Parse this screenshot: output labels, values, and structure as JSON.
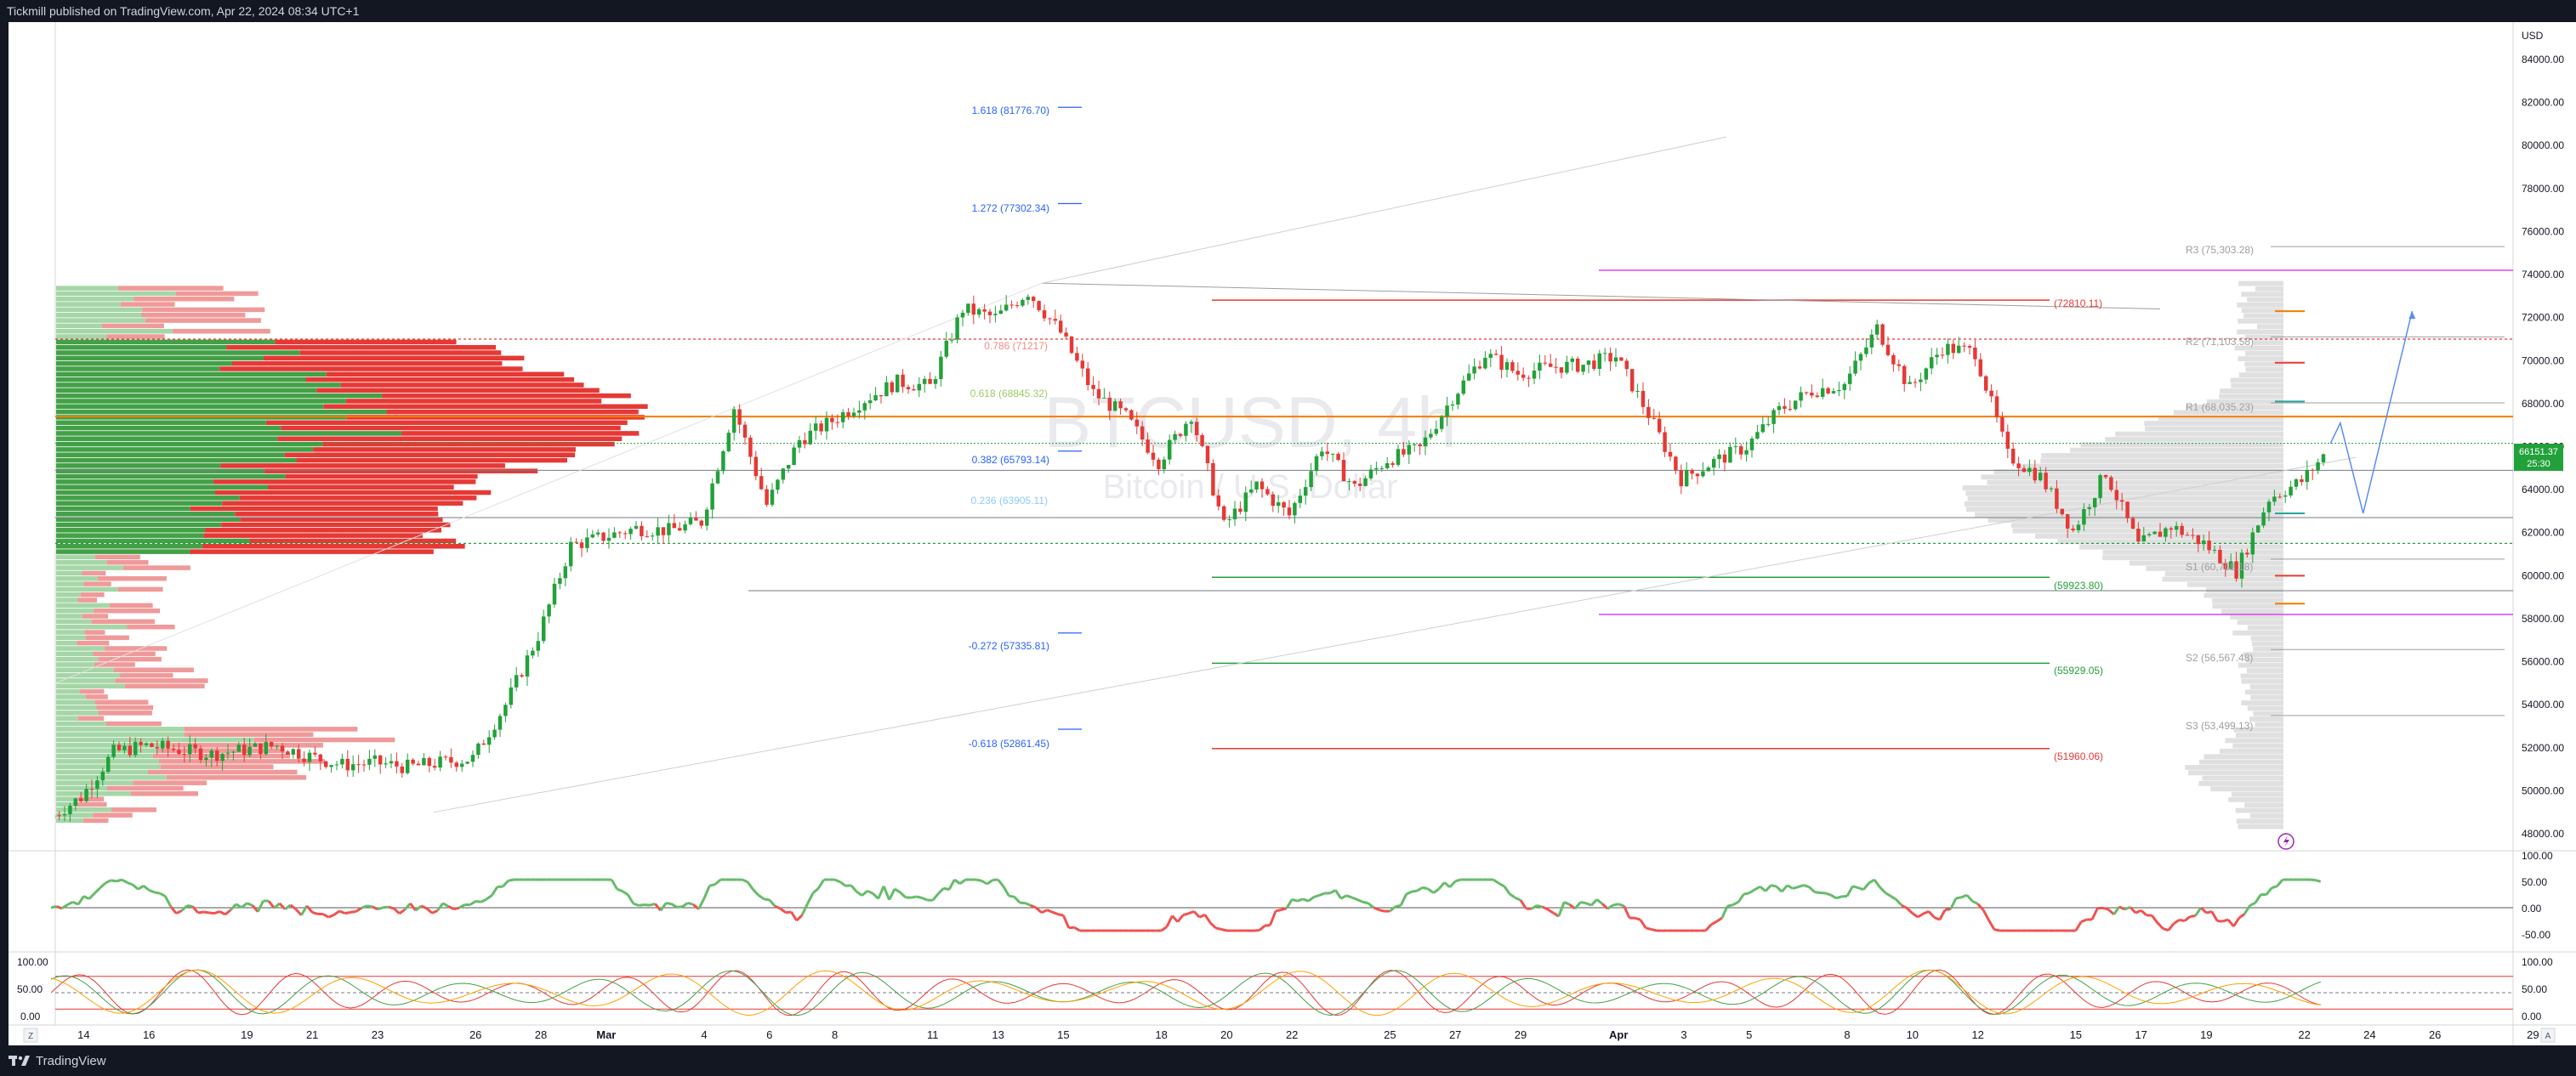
{
  "header": {
    "publisher_text": "Tickmill published on TradingView.com, Apr 22, 2024 08:34 UTC+1"
  },
  "footer": {
    "brand": "TradingView",
    "brand_icon": "tradingview-logo-icon"
  },
  "watermark": {
    "symbol": "BTCUSD, 4h",
    "name": "Bitcoin / U.S. Dollar"
  },
  "colors": {
    "bull": "#22a13a",
    "bear": "#e53935",
    "fib": "#2962ff",
    "orange": "#f57c00",
    "pink": "#e040fb",
    "grey": "#9e9e9e"
  },
  "axes": {
    "currency": "USD",
    "price_ticks": [
      "84000.00",
      "82000.00",
      "80000.00",
      "78000.00",
      "76000.00",
      "74000.00",
      "72000.00",
      "70000.00",
      "68000.00",
      "66000.00",
      "64000.00",
      "62000.00",
      "60000.00",
      "58000.00",
      "56000.00",
      "54000.00",
      "52000.00",
      "50000.00",
      "48000.00"
    ],
    "last_price": "66151.37",
    "countdown": "25:30",
    "osc1_ticks": [
      "100.00",
      "50.00",
      "0.00",
      "-50.00"
    ],
    "osc2_left_ticks": [
      "100.00",
      "50.00",
      "0.00"
    ],
    "osc2_right_ticks": [
      "100.00",
      "50.00",
      "0.00"
    ],
    "date_ticks": [
      "14",
      "16",
      "19",
      "21",
      "23",
      "26",
      "28",
      "Mar",
      "4",
      "6",
      "8",
      "11",
      "13",
      "15",
      "18",
      "20",
      "22",
      "25",
      "27",
      "29",
      "Apr",
      "3",
      "5",
      "8",
      "10",
      "12",
      "15",
      "17",
      "19",
      "22",
      "24",
      "26",
      "29"
    ],
    "corner_left": "Z",
    "corner_right": "A"
  },
  "fib_labels": [
    "1.618 (81776.70)",
    "1.272 (77302.34)",
    "0.618 (68845.32)",
    "0.382 (65793.14)",
    "0.236 (63905.11)",
    "-0.272 (57335.81)",
    "-0.618 (52861.45)"
  ],
  "fib_partial": [
    "0.786 (71217)"
  ],
  "levels": [
    "(72810.11)",
    "(59923.80)",
    "(55929.05)",
    "(51960.06)"
  ],
  "pivots": [
    "R3 (75,303.28)",
    "R2 (71,103.58)",
    "R1 (68,035.23)",
    "S1 (60,768.18)",
    "S2 (56,567.48)",
    "S3 (53,499.13)"
  ],
  "chart_data": {
    "type": "candlestick",
    "title": "BTCUSD, 4h",
    "subtitle": "Bitcoin / U.S. Dollar",
    "xlabel": "",
    "ylabel": "USD",
    "ylim": [
      48000,
      86000
    ],
    "x": [
      "Feb 13",
      "Feb 14",
      "Feb 15",
      "Feb 16",
      "Feb 17",
      "Feb 18",
      "Feb 19",
      "Feb 20",
      "Feb 21",
      "Feb 22",
      "Feb 23",
      "Feb 24",
      "Feb 25",
      "Feb 26",
      "Feb 27",
      "Feb 28",
      "Feb 29",
      "Mar 1",
      "Mar 2",
      "Mar 3",
      "Mar 4",
      "Mar 5",
      "Mar 6",
      "Mar 7",
      "Mar 8",
      "Mar 9",
      "Mar 10",
      "Mar 11",
      "Mar 12",
      "Mar 13",
      "Mar 14",
      "Mar 15",
      "Mar 16",
      "Mar 17",
      "Mar 18",
      "Mar 19",
      "Mar 20",
      "Mar 21",
      "Mar 22",
      "Mar 23",
      "Mar 24",
      "Mar 25",
      "Mar 26",
      "Mar 27",
      "Mar 28",
      "Mar 29",
      "Mar 30",
      "Mar 31",
      "Apr 1",
      "Apr 2",
      "Apr 3",
      "Apr 4",
      "Apr 5",
      "Apr 6",
      "Apr 7",
      "Apr 8",
      "Apr 9",
      "Apr 10",
      "Apr 11",
      "Apr 12",
      "Apr 13",
      "Apr 14",
      "Apr 15",
      "Apr 16",
      "Apr 17",
      "Apr 18",
      "Apr 19",
      "Apr 20",
      "Apr 21",
      "Apr 22"
    ],
    "close": [
      49700,
      51800,
      52100,
      51900,
      51700,
      51900,
      52100,
      51600,
      51200,
      51300,
      51100,
      51300,
      51500,
      54000,
      57200,
      61400,
      61800,
      62200,
      62100,
      62500,
      67800,
      63300,
      66300,
      67200,
      68200,
      69000,
      68800,
      72400,
      72000,
      73200,
      71300,
      68500,
      67400,
      65300,
      67500,
      62300,
      64200,
      62800,
      66000,
      64100,
      65400,
      65900,
      68300,
      70300,
      69400,
      69700,
      69800,
      70200,
      67500,
      64500,
      65300,
      66000,
      67700,
      68600,
      68900,
      71500,
      68700,
      70600,
      70400,
      65600,
      64600,
      62100,
      64800,
      61400,
      62300,
      61500,
      60200,
      63600,
      64400,
      66151
    ]
  },
  "indicators": {
    "momentum_panel": {
      "range": [
        -50,
        100
      ],
      "zero": 0
    },
    "stoch_panel": {
      "range": [
        0,
        100
      ],
      "upper": 80,
      "lower": 20,
      "mid": 50
    }
  }
}
